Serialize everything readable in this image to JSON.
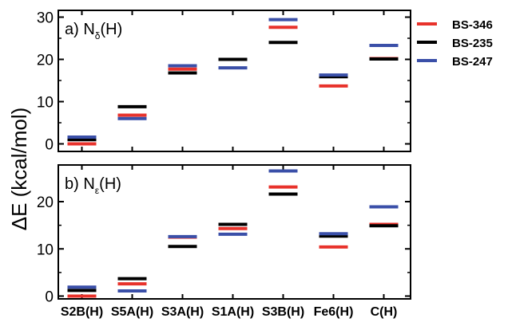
{
  "chart_data": {
    "type": "bar",
    "categories": [
      "S2B(H)",
      "S5A(H)",
      "S3A(H)",
      "S1A(H)",
      "S3B(H)",
      "Fe6(H)",
      "C(H)"
    ],
    "ylabel": "ΔE (kcal/mol)",
    "legend": {
      "placement": "right-outside",
      "entries": [
        "BS-346",
        "BS-235",
        "BS-247"
      ]
    },
    "colors": {
      "BS-346": "#e8322b",
      "BS-235": "#000000",
      "BS-247": "#3a4fa8"
    },
    "panels": [
      {
        "label": "a) N",
        "label_sub": "δ",
        "label_tail": "(H)",
        "ylim": [
          -1,
          31
        ],
        "yticks": [
          "0",
          "10",
          "20",
          "30"
        ],
        "series": [
          {
            "name": "BS-346",
            "values": [
              0.0,
              6.8,
              17.7,
              20.0,
              27.6,
              13.7,
              20.2
            ]
          },
          {
            "name": "BS-235",
            "values": [
              1.0,
              8.8,
              16.8,
              20.0,
              24.0,
              15.9,
              20.1
            ]
          },
          {
            "name": "BS-247",
            "values": [
              1.6,
              6.0,
              18.5,
              18.0,
              29.4,
              16.3,
              23.3
            ]
          }
        ]
      },
      {
        "label": "b) N",
        "label_sub": "ε",
        "label_tail": "(H)",
        "ylim": [
          -0.5,
          28.5
        ],
        "yticks": [
          "0",
          "10",
          "20"
        ],
        "series": [
          {
            "name": "BS-346",
            "values": [
              0.0,
              2.6,
              12.5,
              14.3,
              23.1,
              10.4,
              15.2
            ]
          },
          {
            "name": "BS-235",
            "values": [
              1.2,
              3.7,
              10.5,
              15.2,
              21.6,
              12.7,
              14.9
            ]
          },
          {
            "name": "BS-247",
            "values": [
              1.9,
              1.1,
              12.6,
              13.1,
              26.5,
              13.2,
              18.9
            ]
          }
        ]
      }
    ]
  }
}
